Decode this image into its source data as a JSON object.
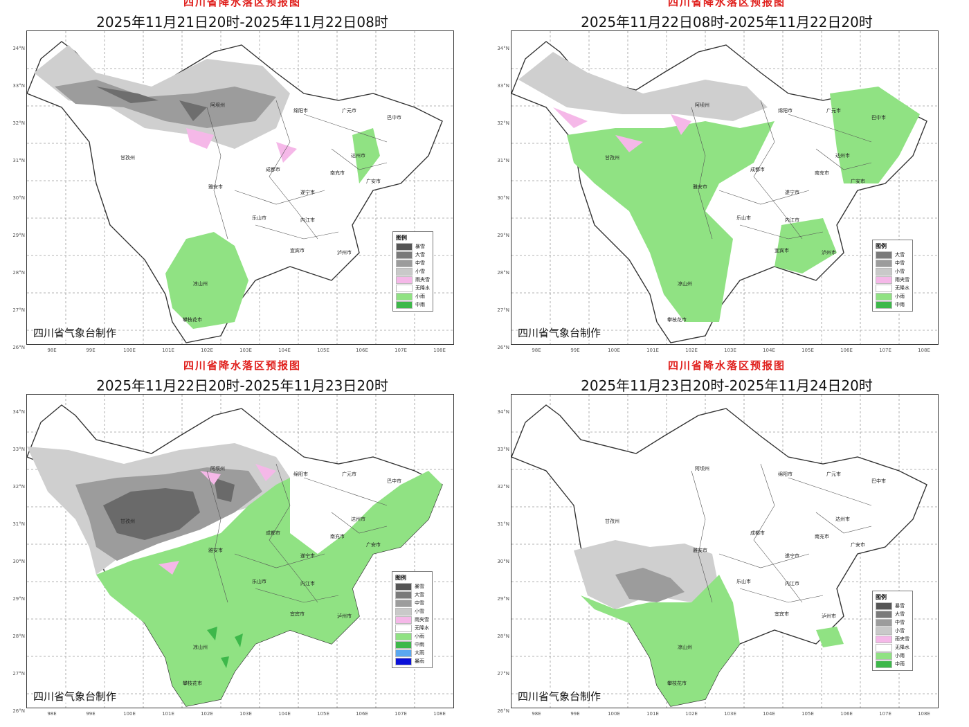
{
  "panels": [
    {
      "map_title": "四川省降水落区预报图",
      "time_range": "2025年11月21日20时-2025年11月22日08时",
      "credit": "四川省气象台制作",
      "legend": {
        "title": "图例",
        "items": [
          {
            "label": "暴雪",
            "color": "#555555"
          },
          {
            "label": "大雪",
            "color": "#7a7a7a"
          },
          {
            "label": "中雪",
            "color": "#9c9c9c"
          },
          {
            "label": "小雪",
            "color": "#c9c9c9"
          },
          {
            "label": "雨夹雪",
            "color": "#f5b8e8"
          },
          {
            "label": "无降水",
            "color": "#ffffff"
          },
          {
            "label": "小雨",
            "color": "#90e283"
          },
          {
            "label": "中雨",
            "color": "#3db84a"
          }
        ]
      }
    },
    {
      "map_title": "四川省降水落区预报图",
      "time_range": "2025年11月22日08时-2025年11月22日20时",
      "credit": "四川省气象台制作",
      "legend": {
        "title": "图例",
        "items": [
          {
            "label": "大雪",
            "color": "#7a7a7a"
          },
          {
            "label": "中雪",
            "color": "#9c9c9c"
          },
          {
            "label": "小雪",
            "color": "#c9c9c9"
          },
          {
            "label": "雨夹雪",
            "color": "#f5b8e8"
          },
          {
            "label": "无降水",
            "color": "#ffffff"
          },
          {
            "label": "小雨",
            "color": "#90e283"
          },
          {
            "label": "中雨",
            "color": "#3db84a"
          }
        ]
      }
    },
    {
      "map_title": "四川省降水落区预报图",
      "time_range": "2025年11月22日20时-2025年11月23日20时",
      "credit": "四川省气象台制作",
      "legend": {
        "title": "图例",
        "items": [
          {
            "label": "暴雪",
            "color": "#555555"
          },
          {
            "label": "大雪",
            "color": "#7a7a7a"
          },
          {
            "label": "中雪",
            "color": "#9c9c9c"
          },
          {
            "label": "小雪",
            "color": "#c9c9c9"
          },
          {
            "label": "雨夹雪",
            "color": "#f5b8e8"
          },
          {
            "label": "无降水",
            "color": "#ffffff"
          },
          {
            "label": "小雨",
            "color": "#90e283"
          },
          {
            "label": "中雨",
            "color": "#3db84a"
          },
          {
            "label": "大雨",
            "color": "#5aa8f0"
          },
          {
            "label": "暴雨",
            "color": "#0a10d8"
          }
        ]
      }
    },
    {
      "map_title": "四川省降水落区预报图",
      "time_range": "2025年11月23日20时-2025年11月24日20时",
      "credit": "四川省气象台制作",
      "legend": {
        "title": "图例",
        "items": [
          {
            "label": "暴雪",
            "color": "#555555"
          },
          {
            "label": "大雪",
            "color": "#7a7a7a"
          },
          {
            "label": "中雪",
            "color": "#9c9c9c"
          },
          {
            "label": "小雪",
            "color": "#c9c9c9"
          },
          {
            "label": "雨夹雪",
            "color": "#f5b8e8"
          },
          {
            "label": "无降水",
            "color": "#ffffff"
          },
          {
            "label": "小雨",
            "color": "#90e283"
          },
          {
            "label": "中雨",
            "color": "#3db84a"
          }
        ]
      }
    }
  ],
  "axes": {
    "latitudes": [
      "34°N",
      "33°N",
      "32°N",
      "31°N",
      "30°N",
      "29°N",
      "28°N",
      "27°N",
      "26°N"
    ],
    "longitudes": [
      "98E",
      "99E",
      "100E",
      "101E",
      "102E",
      "103E",
      "104E",
      "105E",
      "106E",
      "107E",
      "108E"
    ]
  },
  "cities": {
    "ganzi": "甘孜州",
    "aba": "阿坝州",
    "mianyang": "绵阳市",
    "guangyuan": "广元市",
    "bazhong": "巴中市",
    "dazhou": "达州市",
    "chengdu": "成都市",
    "ya_an": "雅安市",
    "leshan": "乐山市",
    "liangshan": "凉山州",
    "panzhihua": "攀枝花市",
    "yibin": "宜宾市",
    "luzhou": "泸州市",
    "suining": "遂宁市",
    "nanchong": "南充市",
    "guang_an": "广安市",
    "neijiang": "内江市"
  }
}
